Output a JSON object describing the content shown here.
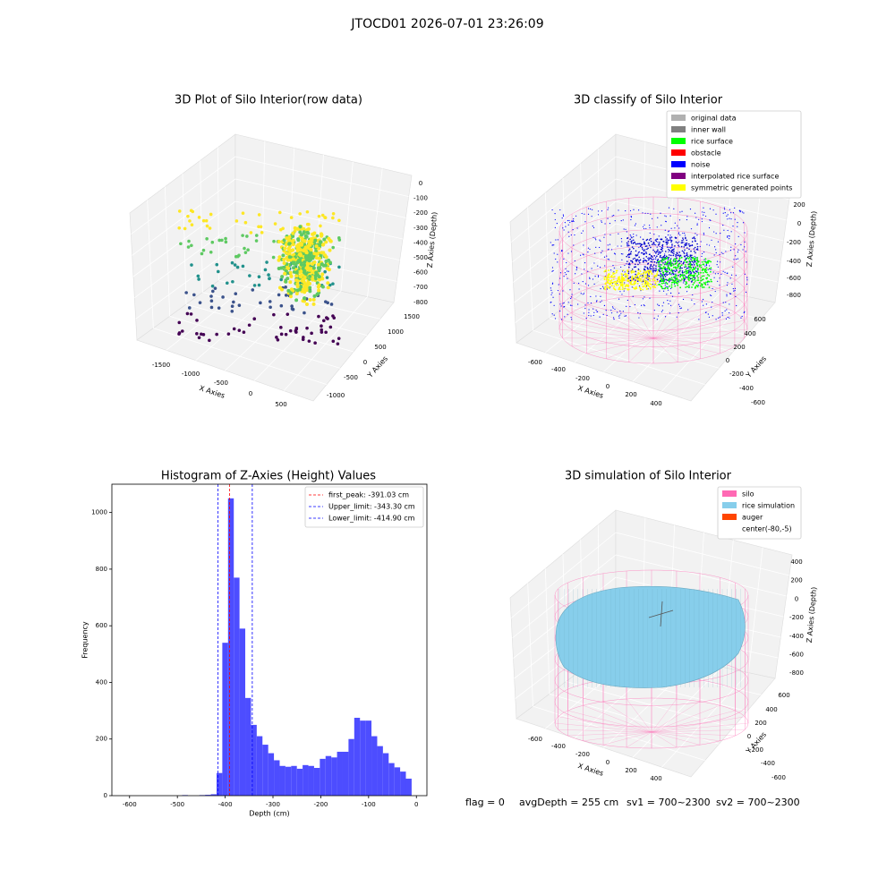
{
  "title": "JTOCD01 2026-07-01 23:26:09",
  "footer": [
    "flag = 0",
    "avgDepth = 255 cm",
    "sv1 = 700~2300",
    "sv2 = 700~2300"
  ],
  "chart_data": [
    {
      "type": "scatter3d",
      "title": "3D Plot of Silo Interior(row data)",
      "xlabel": "X Axies",
      "ylabel": "Y Axies",
      "zlabel": "Z Axies (Depth)",
      "xticks": [
        -1500,
        -1000,
        -500,
        0,
        500
      ],
      "yticks": [
        -1000,
        -500,
        0,
        500,
        1000,
        1500
      ],
      "zticks": [
        0,
        -100,
        -200,
        -300,
        -400,
        -500,
        -600,
        -700,
        -800
      ]
    },
    {
      "type": "scatter3d",
      "title": "3D classify of Silo Interior",
      "xlabel": "X Axies",
      "ylabel": "Y Axies",
      "zlabel": "Z Axies (Depth)",
      "xticks": [
        -600,
        -400,
        -200,
        0,
        200,
        400
      ],
      "yticks": [
        600,
        400,
        200,
        0,
        -200,
        -400,
        -600
      ],
      "zticks": [
        200,
        0,
        -200,
        -400,
        -600,
        -800
      ],
      "legend": [
        {
          "name": "original data",
          "color": "#b0b0b0"
        },
        {
          "name": "inner wall",
          "color": "#808080"
        },
        {
          "name": "rice surface",
          "color": "#00ff00"
        },
        {
          "name": "obstacle",
          "color": "#ff0000"
        },
        {
          "name": "noise",
          "color": "#0000ff"
        },
        {
          "name": "interpolated rice surface",
          "color": "#800080"
        },
        {
          "name": "symmetric generated points",
          "color": "#ffff00"
        }
      ]
    },
    {
      "type": "histogram",
      "title": "Histogram of Z-Axies (Height) Values",
      "xlabel": "Depth (cm)",
      "ylabel": "Frequency",
      "color": "#4d4dff",
      "bins": [
        -490,
        -478,
        -466,
        -454,
        -442,
        -430,
        -418,
        -406,
        -394,
        -382,
        -370,
        -358,
        -346,
        -334,
        -322,
        -310,
        -298,
        -286,
        -274,
        -262,
        -250,
        -238,
        -226,
        -214,
        -202,
        -190,
        -178,
        -166,
        -154,
        -142,
        -130,
        -118,
        -106,
        -94,
        -82,
        -70,
        -58,
        -46,
        -34,
        -22,
        -10
      ],
      "values": [
        2,
        0,
        0,
        2,
        3,
        5,
        80,
        540,
        1050,
        770,
        590,
        345,
        250,
        210,
        180,
        150,
        125,
        105,
        102,
        105,
        95,
        108,
        105,
        98,
        130,
        140,
        135,
        155,
        155,
        200,
        275,
        265,
        265,
        210,
        175,
        150,
        115,
        100,
        85,
        60
      ],
      "xlim": [
        -637,
        22
      ],
      "ylim": [
        0,
        1100
      ],
      "xticks": [
        -600,
        -500,
        -400,
        -300,
        -200,
        -100,
        0
      ],
      "yticks": [
        0,
        200,
        400,
        600,
        800,
        1000
      ],
      "legend_loc": "upper right",
      "vlines": [
        {
          "name": "first_peak: -391.03 cm",
          "value": -391.03,
          "color": "#ff0000"
        },
        {
          "name": "Upper_limit: -343.30 cm",
          "value": -343.3,
          "color": "#0000ff"
        },
        {
          "name": "Lower_limit: -414.90 cm",
          "value": -414.9,
          "color": "#0000ff"
        }
      ]
    },
    {
      "type": "surface3d",
      "title": "3D simulation of Silo Interior",
      "xlabel": "X Axies",
      "ylabel": "Y Axies",
      "zlabel": "Z Axies (Depth)",
      "xticks": [
        -600,
        -400,
        -200,
        0,
        200,
        400
      ],
      "yticks": [
        600,
        400,
        200,
        0,
        -200,
        -400,
        -600
      ],
      "zticks": [
        400,
        200,
        0,
        -200,
        -400,
        -600,
        -800
      ],
      "legend": [
        {
          "name": "silo",
          "color": "#ff69b4"
        },
        {
          "name": "rice simulation",
          "color": "#87ceeb"
        },
        {
          "name": "auger",
          "color": "#ff4500"
        },
        {
          "name": "center(-80,-5)",
          "color": "#ffffff"
        }
      ]
    }
  ]
}
